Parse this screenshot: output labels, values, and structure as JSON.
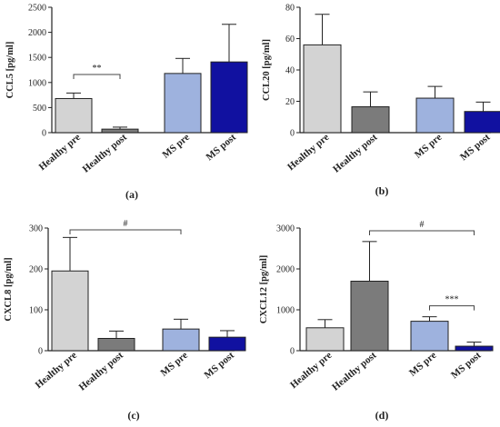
{
  "chart_data": [
    {
      "type": "bar",
      "panel_label": "(a)",
      "ylabel": "CCL5 [pg/ml]",
      "ylim": [
        0,
        2500
      ],
      "yticks": [
        0,
        500,
        1000,
        1500,
        2000,
        2500
      ],
      "categories": [
        "Healthy pre",
        "Healthy post",
        "MS pre",
        "MS post"
      ],
      "values": [
        680,
        70,
        1180,
        1410
      ],
      "errors": [
        110,
        40,
        300,
        750
      ],
      "colors": [
        "#d3d3d3",
        "#7b7b7b",
        "#9eb2de",
        "#1111a0"
      ],
      "annotations": [
        {
          "from": 0,
          "to": 1,
          "label": "**"
        }
      ]
    },
    {
      "type": "bar",
      "panel_label": "(b)",
      "ylabel": "CCL20 [pg/ml]",
      "ylim": [
        0,
        80
      ],
      "yticks": [
        0,
        20,
        40,
        60,
        80
      ],
      "categories": [
        "Healthy pre",
        "Healthy post",
        "MS pre",
        "MS post"
      ],
      "values": [
        56,
        16.5,
        22,
        13.5
      ],
      "errors": [
        19.5,
        9.5,
        7.5,
        6
      ],
      "colors": [
        "#d3d3d3",
        "#7b7b7b",
        "#9eb2de",
        "#1111a0"
      ],
      "annotations": []
    },
    {
      "type": "bar",
      "panel_label": "(c)",
      "ylabel": "CXCL8 [pg/ml]",
      "ylim": [
        0,
        300
      ],
      "yticks": [
        0,
        100,
        200,
        300
      ],
      "categories": [
        "Healthy pre",
        "Healthy post",
        "MS pre",
        "MS post"
      ],
      "values": [
        195,
        30,
        53,
        33
      ],
      "errors": [
        82,
        18,
        24,
        16
      ],
      "colors": [
        "#d3d3d3",
        "#7b7b7b",
        "#9eb2de",
        "#1111a0"
      ],
      "annotations": [
        {
          "from": 0,
          "to": 2,
          "label": "#"
        }
      ]
    },
    {
      "type": "bar",
      "panel_label": "(d)",
      "ylabel": "CXCL12 [pg/ml]",
      "ylim": [
        0,
        3000
      ],
      "yticks": [
        0,
        1000,
        2000,
        3000
      ],
      "categories": [
        "Healthy pre",
        "Healthy post",
        "MS pre",
        "MS post"
      ],
      "values": [
        560,
        1700,
        720,
        110
      ],
      "errors": [
        200,
        970,
        110,
        100
      ],
      "colors": [
        "#d3d3d3",
        "#7b7b7b",
        "#9eb2de",
        "#1111a0"
      ],
      "annotations": [
        {
          "from": 1,
          "to": 3,
          "label": "#"
        },
        {
          "from": 2,
          "to": 3,
          "label": "***"
        }
      ]
    }
  ]
}
